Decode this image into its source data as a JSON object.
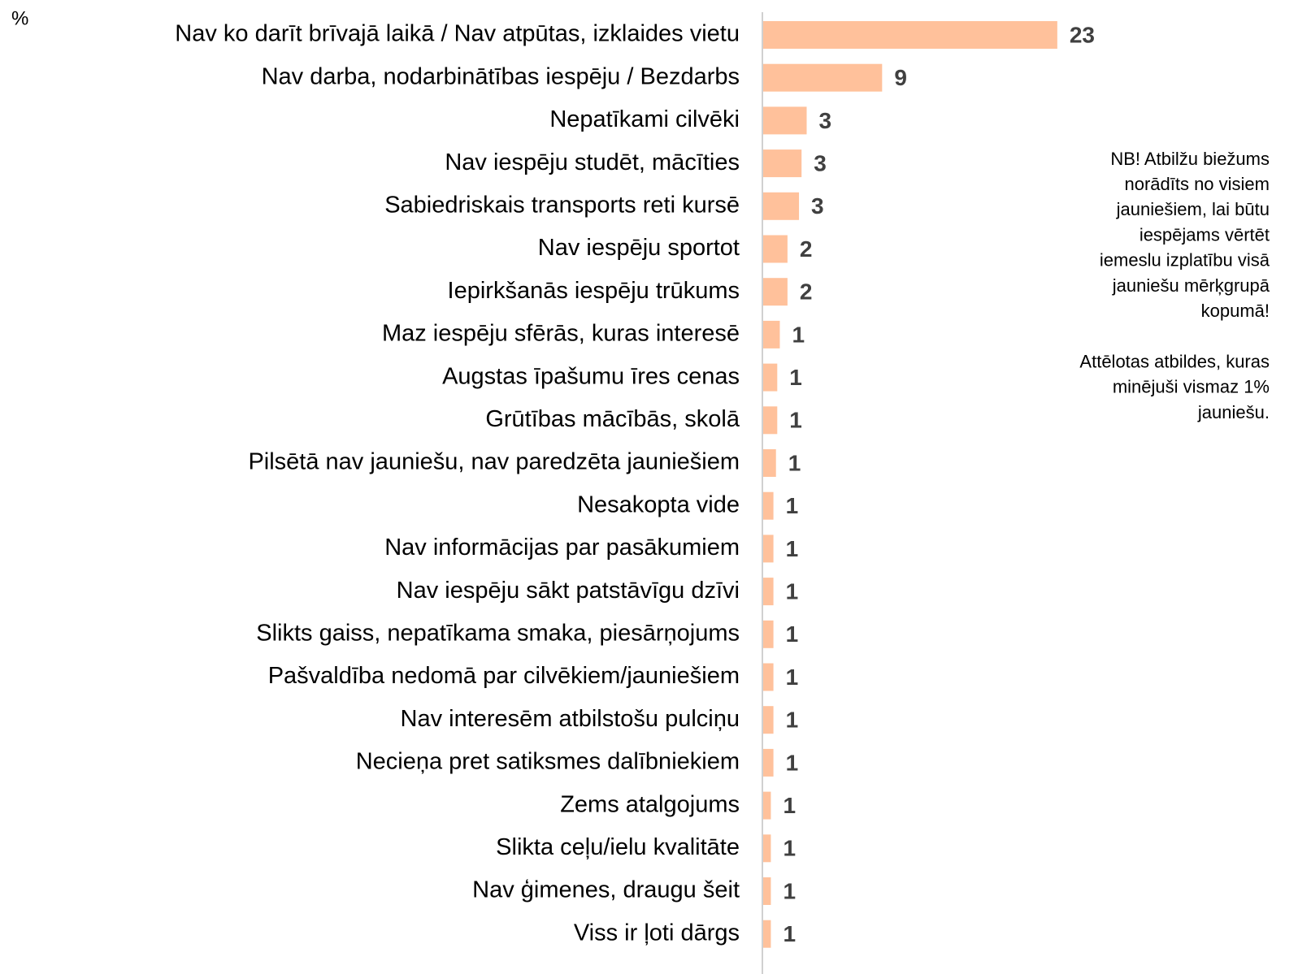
{
  "chart_data": {
    "type": "barh",
    "unit_label": "%",
    "categories": [
      "Nav ko darīt brīvajā laikā / Nav atpūtas, izklaides vietu",
      "Nav darba, nodarbinātības iespēju / Bezdarbs",
      "Nepatīkami cilvēki",
      "Nav iespēju studēt, mācīties",
      "Sabiedriskais transports reti kursē",
      "Nav iespēju sportot",
      "Iepirkšanās iespēju trūkums",
      "Maz iespēju sfērās, kuras interesē",
      "Augstas īpašumu īres cenas",
      "Grūtības mācībās, skolā",
      "Pilsētā nav jauniešu, nav paredzēta jauniešiem",
      "Nesakopta vide",
      "Nav informācijas par pasākumiem",
      "Nav iespēju sākt patstāvīgu dzīvi",
      "Slikts gaiss, nepatīkama smaka, piesārņojums",
      "Pašvaldība nedomā par cilvēkiem/jauniešiem",
      "Nav interesēm atbilstošu pulciņu",
      "Necieņa pret satiksmes dalībniekiem",
      "Zems atalgojums",
      "Slikta ceļu/ielu kvalitāte",
      "Nav ģimenes, draugu šeit",
      "Viss ir ļoti dārgs"
    ],
    "values": [
      23,
      9.3,
      3.4,
      3.0,
      2.8,
      1.9,
      1.9,
      1.3,
      1.1,
      1.1,
      1.0,
      0.8,
      0.8,
      0.8,
      0.8,
      0.8,
      0.8,
      0.8,
      0.6,
      0.6,
      0.6,
      0.6
    ],
    "value_labels": [
      "23",
      "9",
      "3",
      "3",
      "3",
      "2",
      "2",
      "1",
      "1",
      "1",
      "1",
      "1",
      "1",
      "1",
      "1",
      "1",
      "1",
      "1",
      "1",
      "1",
      "1",
      "1"
    ],
    "color": "#ffc19b",
    "xlim": [
      0,
      30
    ],
    "notes": [
      [
        "NB! Atbilžu biežums",
        "norādīts no visiem",
        "jauniešiem, lai būtu",
        "iespējams vērtēt",
        "iemeslu izplatību visā",
        "jauniešu mērķgrupā",
        "kopumā!"
      ],
      [
        "Attēlotas atbildes, kuras",
        "minējuši vismaz 1%",
        "jauniešu."
      ]
    ]
  }
}
